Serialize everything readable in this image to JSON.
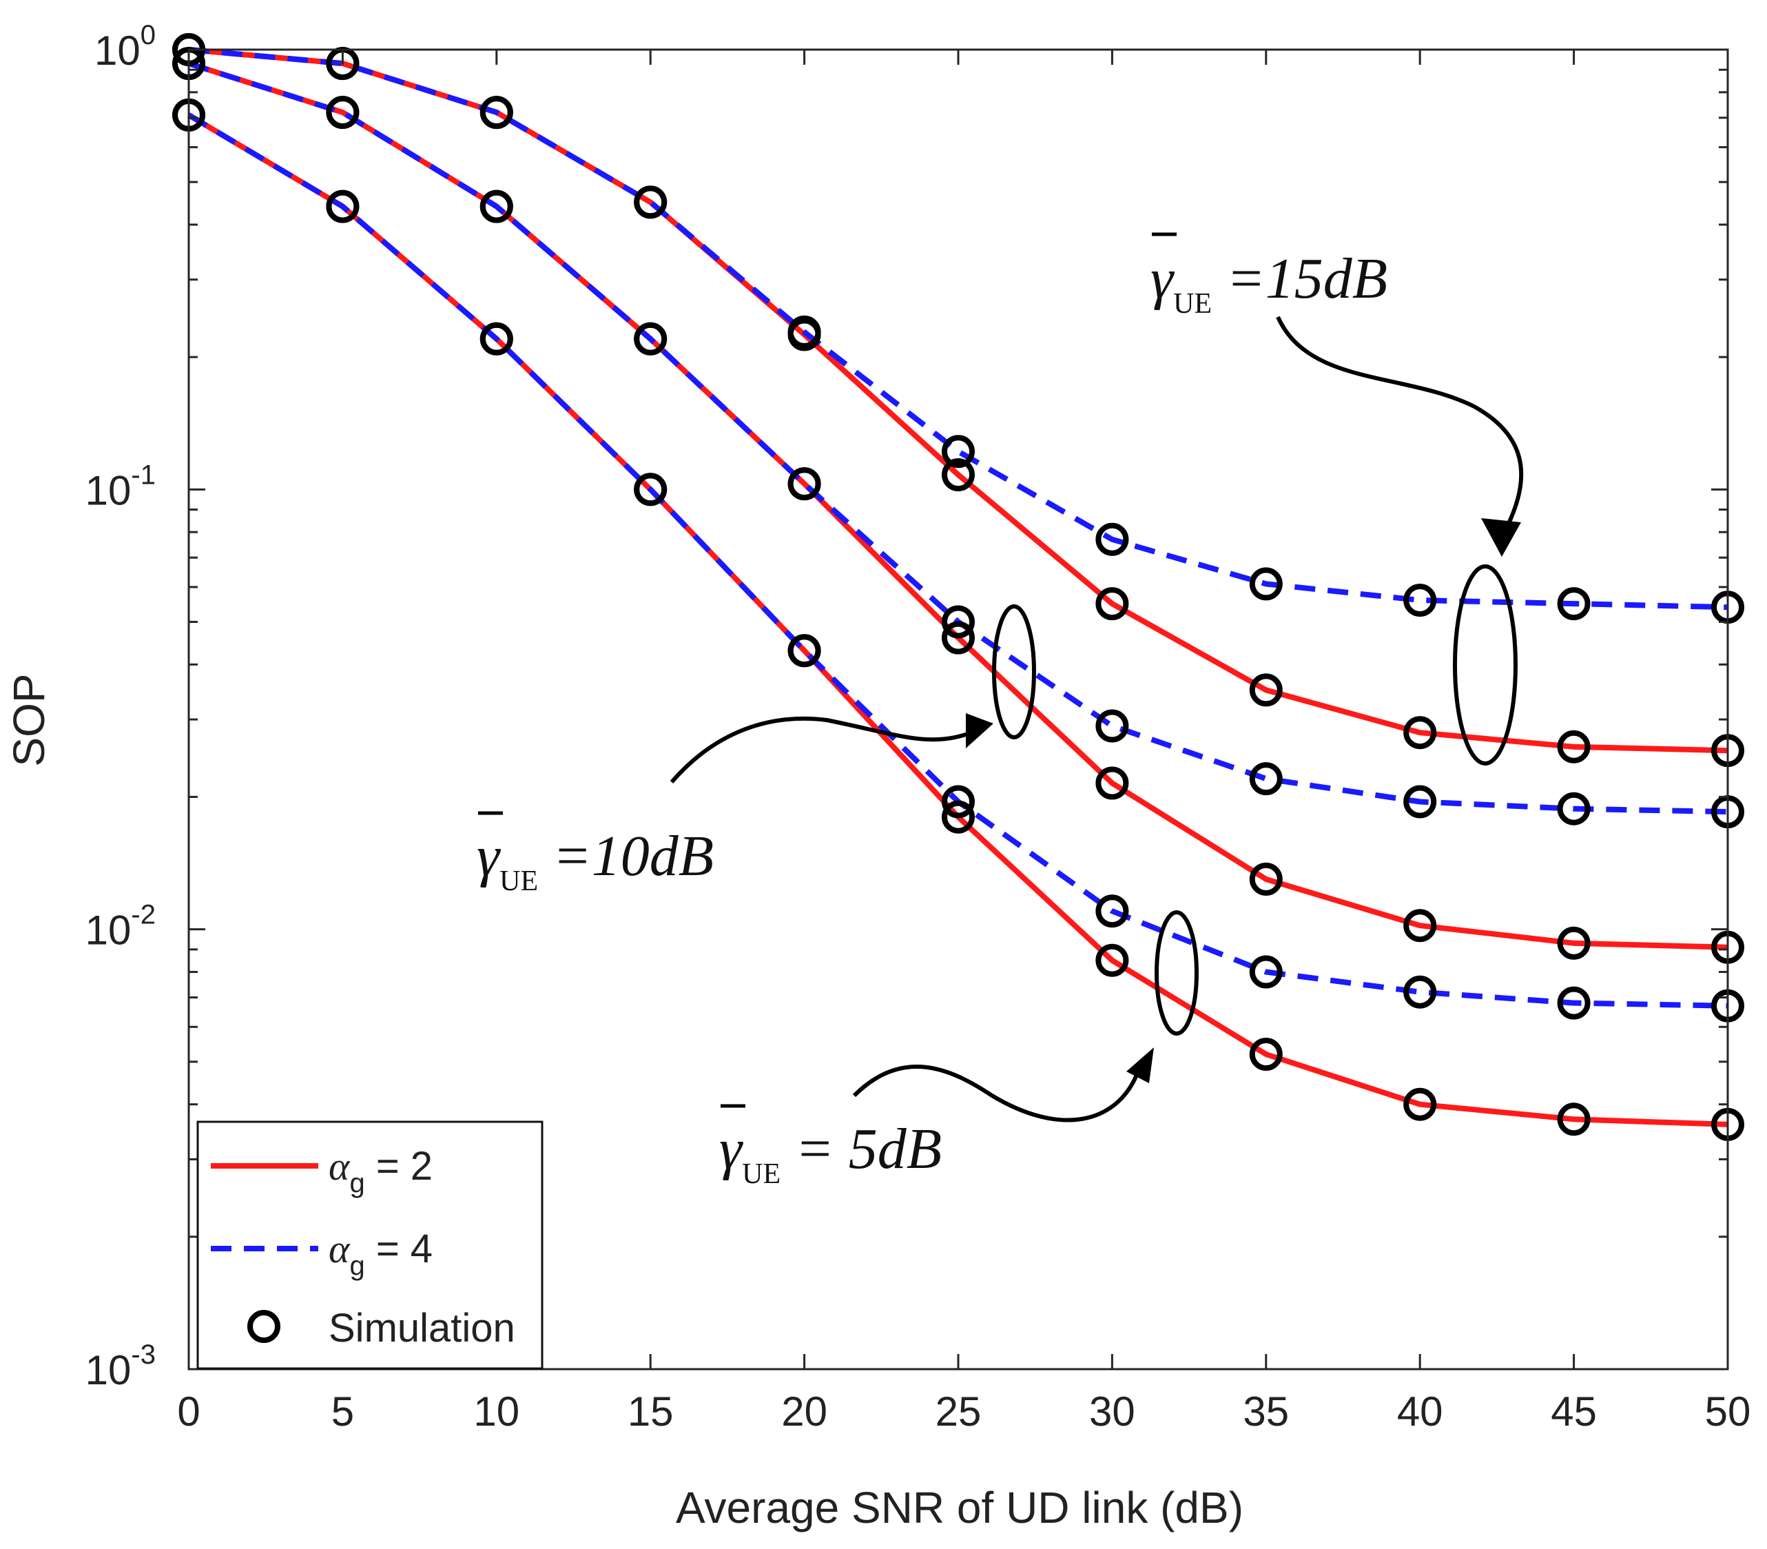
{
  "chart_data": {
    "type": "line",
    "title": "",
    "xlabel": "Average SNR of UD link (dB)",
    "ylabel": "SOP",
    "xscale": "linear",
    "yscale": "log",
    "xlim": [
      0,
      50
    ],
    "ylim": [
      0.001,
      1
    ],
    "x_ticks": [
      0,
      5,
      10,
      15,
      20,
      25,
      30,
      35,
      40,
      45,
      50
    ],
    "x_tick_labels": [
      "0",
      "5",
      "10",
      "15",
      "20",
      "25",
      "30",
      "35",
      "40",
      "45",
      "50"
    ],
    "y_ticks": [
      {
        "value": 1,
        "base": "10",
        "exp": "0"
      },
      {
        "value": 0.1,
        "base": "10",
        "exp": "-1"
      },
      {
        "value": 0.01,
        "base": "10",
        "exp": "-2"
      },
      {
        "value": 0.001,
        "base": "10",
        "exp": "-3"
      }
    ],
    "grid": false,
    "x": [
      0,
      5,
      10,
      15,
      20,
      25,
      30,
      35,
      40,
      45,
      50
    ],
    "series": [
      {
        "name": "α_g = 2, γ_UE = 15dB",
        "group": "alpha2",
        "values": [
          1.0,
          0.93,
          0.72,
          0.45,
          0.225,
          0.108,
          0.055,
          0.035,
          0.028,
          0.026,
          0.0255
        ]
      },
      {
        "name": "α_g = 4, γ_UE = 15dB",
        "group": "alpha4",
        "values": [
          1.0,
          0.93,
          0.72,
          0.45,
          0.228,
          0.122,
          0.077,
          0.061,
          0.056,
          0.055,
          0.054
        ]
      },
      {
        "name": "α_g = 2, γ_UE = 10dB",
        "group": "alpha2",
        "values": [
          0.93,
          0.72,
          0.44,
          0.22,
          0.103,
          0.046,
          0.0215,
          0.013,
          0.0102,
          0.0093,
          0.0091
        ]
      },
      {
        "name": "α_g = 4, γ_UE = 10dB",
        "group": "alpha4",
        "values": [
          0.93,
          0.72,
          0.44,
          0.22,
          0.103,
          0.05,
          0.029,
          0.022,
          0.0195,
          0.0188,
          0.0185
        ]
      },
      {
        "name": "α_g = 2, γ_UE = 5dB",
        "group": "alpha2",
        "values": [
          0.71,
          0.44,
          0.22,
          0.1,
          0.043,
          0.018,
          0.0085,
          0.0052,
          0.004,
          0.0037,
          0.0036
        ]
      },
      {
        "name": "α_g = 4, γ_UE = 5dB",
        "group": "alpha4",
        "values": [
          0.71,
          0.44,
          0.22,
          0.1,
          0.043,
          0.0195,
          0.011,
          0.008,
          0.0072,
          0.0068,
          0.0067
        ]
      }
    ],
    "legend": {
      "position": "bottom-left",
      "entries": [
        {
          "id": "alpha2",
          "symbol": "α",
          "subscript": "g",
          "suffix": " = 2",
          "style": "solid",
          "color": "#ff1a1a"
        },
        {
          "id": "alpha4",
          "symbol": "α",
          "subscript": "g",
          "suffix": " = 4",
          "style": "dashed",
          "color": "#1a1aff"
        },
        {
          "id": "simulation",
          "label": "Simulation",
          "style": "markers",
          "color": "#000000"
        }
      ]
    },
    "annotations": [
      {
        "id": "ue15",
        "symbol": "γ",
        "subscript": "UE",
        "rest": " =15dB",
        "points_to_x": 42
      },
      {
        "id": "ue10",
        "symbol": "γ",
        "subscript": "UE",
        "rest": " =10dB",
        "points_to_x": 27
      },
      {
        "id": "ue5",
        "symbol": "γ",
        "subscript": "UE",
        "rest": " = 5dB",
        "points_to_x": 32
      }
    ],
    "colors": {
      "alpha2": "#ff1a1a",
      "alpha4": "#1a1aff",
      "markers": "#000000",
      "axes": "#262626"
    }
  }
}
